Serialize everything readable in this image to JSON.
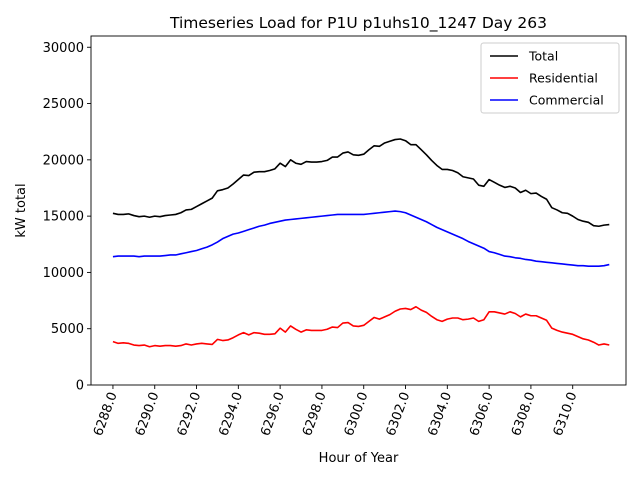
{
  "chart_data": {
    "type": "line",
    "title": "Timeseries Load for P1U p1uhs10_1247  Day 263",
    "xlabel": "Hour of Year",
    "ylabel": "kW total",
    "xlim": [
      6286.95,
      6312.55
    ],
    "ylim": [
      0,
      31000
    ],
    "x_ticks": [
      6288,
      6290,
      6292,
      6294,
      6296,
      6298,
      6300,
      6302,
      6304,
      6306,
      6308,
      6310
    ],
    "x_tick_labels": [
      "6288.0",
      "6290.0",
      "6292.0",
      "6294.0",
      "6296.0",
      "6298.0",
      "6300.0",
      "6302.0",
      "6304.0",
      "6306.0",
      "6308.0",
      "6310.0"
    ],
    "y_ticks": [
      0,
      5000,
      10000,
      15000,
      20000,
      25000,
      30000
    ],
    "y_tick_labels": [
      "0",
      "5000",
      "10000",
      "15000",
      "20000",
      "25000",
      "30000"
    ],
    "legend_position": "top-right",
    "x_start": 6288,
    "x_step": 0.25,
    "series": [
      {
        "name": "Total",
        "color": "#000000",
        "values": [
          15250,
          15150,
          15150,
          15200,
          15050,
          14950,
          15000,
          14900,
          15000,
          14950,
          15050,
          15100,
          15150,
          15300,
          15550,
          15600,
          15850,
          16100,
          16350,
          16600,
          17250,
          17350,
          17500,
          17850,
          18250,
          18650,
          18600,
          18900,
          18950,
          18950,
          19050,
          19200,
          19700,
          19400,
          20000,
          19700,
          19600,
          19850,
          19800,
          19800,
          19850,
          19950,
          20250,
          20250,
          20600,
          20700,
          20450,
          20400,
          20500,
          20900,
          21250,
          21200,
          21500,
          21650,
          21800,
          21850,
          21700,
          21350,
          21350,
          20900,
          20450,
          19950,
          19500,
          19150,
          19150,
          19050,
          18850,
          18500,
          18400,
          18300,
          17750,
          17650,
          18250,
          18000,
          17750,
          17550,
          17650,
          17500,
          17100,
          17300,
          17000,
          17050,
          16750,
          16500,
          15750,
          15550,
          15300,
          15250,
          15000,
          14700,
          14550,
          14450,
          14150,
          14100,
          14200,
          14250
        ]
      },
      {
        "name": "Residential",
        "color": "#ff0000",
        "values": [
          3850,
          3700,
          3750,
          3700,
          3550,
          3500,
          3550,
          3400,
          3500,
          3450,
          3500,
          3500,
          3450,
          3500,
          3650,
          3550,
          3650,
          3700,
          3650,
          3600,
          4050,
          3950,
          4000,
          4200,
          4450,
          4650,
          4450,
          4650,
          4600,
          4500,
          4500,
          4550,
          5050,
          4700,
          5250,
          4950,
          4700,
          4900,
          4850,
          4850,
          4850,
          4950,
          5150,
          5100,
          5500,
          5550,
          5250,
          5200,
          5300,
          5650,
          6000,
          5850,
          6050,
          6250,
          6550,
          6750,
          6800,
          6700,
          6950,
          6650,
          6450,
          6100,
          5800,
          5650,
          5850,
          5950,
          5950,
          5800,
          5850,
          5950,
          5650,
          5800,
          6500,
          6500,
          6400,
          6300,
          6500,
          6350,
          6050,
          6300,
          6150,
          6150,
          5950,
          5750,
          5050,
          4850,
          4700,
          4600,
          4500,
          4300,
          4100,
          4000,
          3800,
          3550,
          3650,
          3550
        ]
      },
      {
        "name": "Commercial",
        "color": "#0000ff",
        "values": [
          11400,
          11450,
          11450,
          11450,
          11450,
          11400,
          11450,
          11450,
          11450,
          11450,
          11500,
          11550,
          11550,
          11650,
          11750,
          11850,
          11950,
          12100,
          12250,
          12450,
          12700,
          13000,
          13200,
          13400,
          13500,
          13650,
          13800,
          13950,
          14100,
          14200,
          14350,
          14450,
          14550,
          14650,
          14700,
          14750,
          14800,
          14850,
          14900,
          14950,
          15000,
          15050,
          15100,
          15150,
          15150,
          15150,
          15150,
          15150,
          15150,
          15200,
          15250,
          15300,
          15350,
          15400,
          15450,
          15400,
          15300,
          15100,
          14900,
          14700,
          14500,
          14250,
          14000,
          13800,
          13600,
          13400,
          13200,
          13000,
          12750,
          12550,
          12350,
          12150,
          11850,
          11750,
          11600,
          11450,
          11400,
          11300,
          11250,
          11150,
          11100,
          11000,
          10950,
          10900,
          10850,
          10800,
          10750,
          10700,
          10650,
          10600,
          10600,
          10550,
          10550,
          10550,
          10600,
          10700
        ]
      }
    ]
  }
}
